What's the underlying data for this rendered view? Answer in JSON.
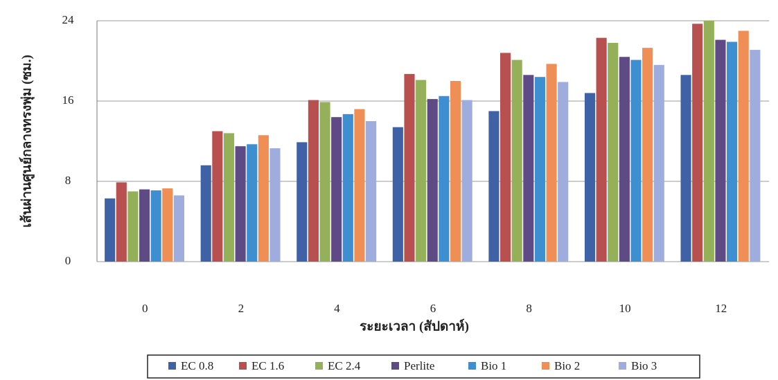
{
  "chart_data": {
    "type": "bar",
    "x_label": "ระยะเวลา (สัปดาห์)",
    "y_label": "เส้นผ่านศูนย์กลางทรงพุ่ม (ซม.)",
    "categories": [
      "0",
      "2",
      "4",
      "6",
      "8",
      "10",
      "12"
    ],
    "series": [
      {
        "name": "EC 0.8",
        "color": "#3f62a6",
        "values": [
          6.3,
          9.6,
          11.9,
          13.4,
          15.0,
          16.8,
          18.6
        ]
      },
      {
        "name": "EC 1.6",
        "color": "#b8504f",
        "values": [
          7.9,
          13.0,
          16.1,
          18.7,
          20.8,
          22.3,
          23.7
        ]
      },
      {
        "name": "EC 2.4",
        "color": "#94b15a",
        "values": [
          7.0,
          12.8,
          15.9,
          18.1,
          20.1,
          21.8,
          24.0
        ]
      },
      {
        "name": "Perlite",
        "color": "#5e4a85",
        "values": [
          7.2,
          11.5,
          14.4,
          16.2,
          18.6,
          20.4,
          22.1
        ]
      },
      {
        "name": "Bio 1",
        "color": "#3d8fd0",
        "values": [
          7.1,
          11.7,
          14.7,
          16.5,
          18.4,
          20.1,
          21.9
        ]
      },
      {
        "name": "Bio 2",
        "color": "#ef8f55",
        "values": [
          7.3,
          12.6,
          15.2,
          18.0,
          19.7,
          21.3,
          23.0
        ]
      },
      {
        "name": "Bio 3",
        "color": "#9fadde",
        "values": [
          6.6,
          11.3,
          14.0,
          16.1,
          17.9,
          19.6,
          21.1
        ]
      }
    ],
    "ylim": [
      0,
      24
    ],
    "yticks": [
      0,
      8,
      16,
      24
    ],
    "grid": true,
    "legend": "bottom"
  }
}
